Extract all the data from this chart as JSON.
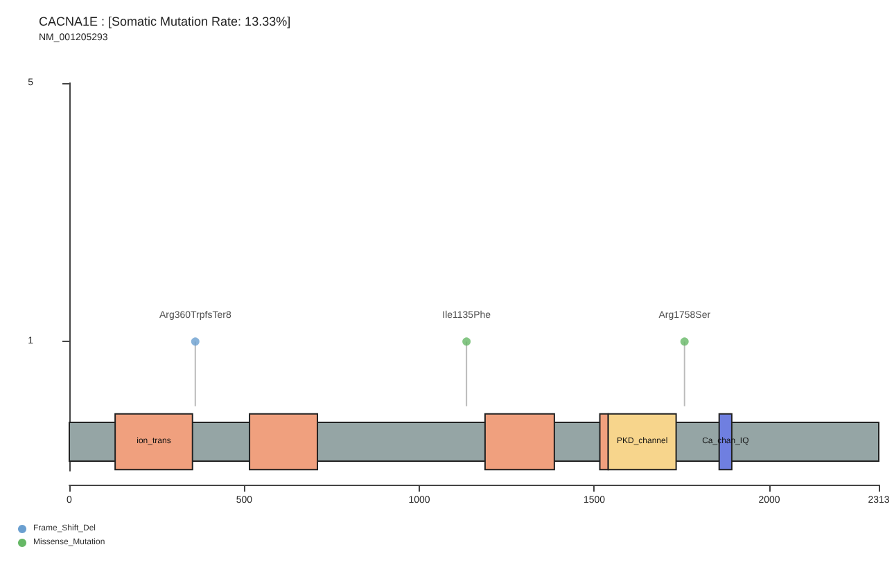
{
  "chart_data": {
    "type": "lollipop",
    "title": "CACNA1E : [Somatic Mutation Rate: 13.33%]",
    "subtitle": "NM_001205293",
    "xlim": [
      0,
      2313
    ],
    "xticks": [
      0,
      500,
      1000,
      1500,
      2000,
      2313
    ],
    "ylim": [
      -1,
      5
    ],
    "yticks": [
      1,
      5
    ],
    "series": [
      {
        "name": "Frame_Shift_Del",
        "color": "#6a9fd0",
        "x": [
          360
        ],
        "values": [
          1
        ],
        "value_labels": [
          "Arg360TrpfsTer8"
        ]
      },
      {
        "name": "Missense_Mutation",
        "color": "#66b866",
        "x": [
          1135,
          1758
        ],
        "values": [
          1,
          1
        ],
        "value_labels": [
          "Ile1135Phe",
          "Arg1758Ser"
        ]
      }
    ],
    "bands": [
      {
        "axis": "x",
        "from": 0,
        "to": 2313,
        "label": null,
        "color": "#95a5a5"
      },
      {
        "axis": "x",
        "from": 131,
        "to": 352,
        "label": "ion_trans",
        "color": "#f0a07e"
      },
      {
        "axis": "x",
        "from": 515,
        "to": 709,
        "label": null,
        "color": "#f0a07e"
      },
      {
        "axis": "x",
        "from": 1188,
        "to": 1386,
        "label": null,
        "color": "#f0a07e"
      },
      {
        "axis": "x",
        "from": 1516,
        "to": 1540,
        "label": null,
        "color": "#f0a07e"
      },
      {
        "axis": "x",
        "from": 1540,
        "to": 1734,
        "label": "PKD_channel",
        "color": "#f7d58c"
      },
      {
        "axis": "x",
        "from": 1857,
        "to": 1893,
        "label": "Ca_chan_IQ",
        "color": "#6f7fe0"
      }
    ],
    "marker": "circle",
    "grid": false,
    "legend": "bottom left"
  }
}
